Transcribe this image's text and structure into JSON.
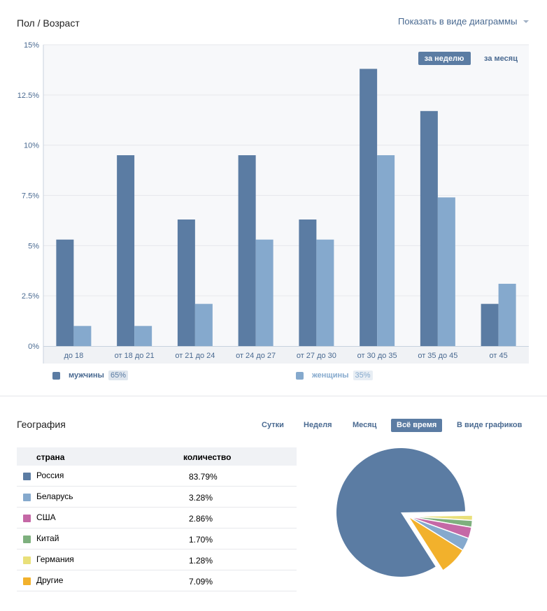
{
  "age_section": {
    "title": "Пол / Возраст",
    "view_link": "Показать в виде диаграммы",
    "period_tabs": [
      {
        "label": "за неделю",
        "active": true
      },
      {
        "label": "за месяц",
        "active": false
      }
    ],
    "legend": [
      {
        "label": "мужчины",
        "percent": "65%",
        "color": "#5b7ca3"
      },
      {
        "label": "женщины",
        "percent": "35%",
        "color": "#85a9cd"
      }
    ]
  },
  "chart_data": [
    {
      "type": "bar",
      "categories": [
        "до 18",
        "от 18 до 21",
        "от 21 до 24",
        "от 24 до 27",
        "от 27 до 30",
        "от 30 до 35",
        "от 35 до 45",
        "от 45"
      ],
      "series": [
        {
          "name": "мужчины",
          "values": [
            5.3,
            9.5,
            6.3,
            9.5,
            6.3,
            13.8,
            11.7,
            2.1
          ],
          "color": "#5b7ca3"
        },
        {
          "name": "женщины",
          "values": [
            1.0,
            1.0,
            2.1,
            5.3,
            5.3,
            9.5,
            7.4,
            3.1
          ],
          "color": "#85a9cd"
        }
      ],
      "yticks": [
        "0%",
        "2.5%",
        "5%",
        "7.5%",
        "10%",
        "12.5%",
        "15%"
      ],
      "ylim": [
        0,
        15
      ],
      "grid": true,
      "legend": "bottom"
    },
    {
      "type": "pie",
      "categories": [
        "Россия",
        "Беларусь",
        "США",
        "Китай",
        "Германия",
        "Другие"
      ],
      "values": [
        83.79,
        3.28,
        2.86,
        1.7,
        1.28,
        7.09
      ],
      "colors": [
        "#5b7ca3",
        "#85a9cd",
        "#c568a6",
        "#7eb07e",
        "#e9e07a",
        "#f2b12c"
      ]
    }
  ],
  "geo_section": {
    "title": "География",
    "tabs": [
      {
        "label": "Сутки",
        "active": false
      },
      {
        "label": "Неделя",
        "active": false
      },
      {
        "label": "Месяц",
        "active": false
      },
      {
        "label": "Всё время",
        "active": true
      },
      {
        "label": "В виде графиков",
        "active": false
      }
    ],
    "table": {
      "headers": [
        "страна",
        "количество"
      ],
      "rows": [
        {
          "country": "Россия",
          "value": "83.79%",
          "color": "#5b7ca3"
        },
        {
          "country": "Беларусь",
          "value": "3.28%",
          "color": "#85a9cd"
        },
        {
          "country": "США",
          "value": "2.86%",
          "color": "#c568a6"
        },
        {
          "country": "Китай",
          "value": "1.70%",
          "color": "#7eb07e"
        },
        {
          "country": "Германия",
          "value": "1.28%",
          "color": "#e9e07a"
        },
        {
          "country": "Другие",
          "value": "7.09%",
          "color": "#f2b12c"
        }
      ]
    }
  }
}
